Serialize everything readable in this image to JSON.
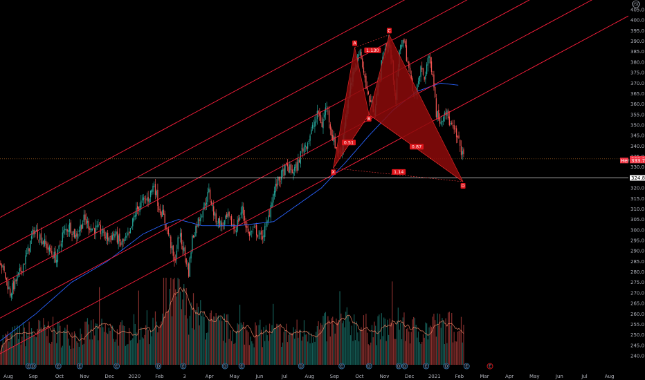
{
  "chart_data": {
    "type": "candlestick",
    "y_axis": {
      "range": [
        236,
        412
      ],
      "ticks": [
        240,
        245,
        250,
        255,
        260,
        265,
        270,
        275,
        280,
        285,
        290,
        295,
        300,
        305,
        310,
        315,
        320,
        325,
        330,
        335,
        340,
        345,
        350,
        355,
        360,
        365,
        370,
        375,
        380,
        385,
        390,
        395,
        400,
        405
      ]
    },
    "x_axis": {
      "ticks": [
        "Aug",
        "Sep",
        "Oct",
        "Nov",
        "Dec",
        "2020",
        "Feb",
        "3",
        "Apr",
        "May",
        "Jun",
        "Jul",
        "Aug",
        "Sep",
        "Oct",
        "Nov",
        "Dec",
        "2021",
        "Feb",
        "Mar",
        "Apr",
        "May",
        "Jun",
        "Jul",
        "Aug"
      ],
      "tick_index": [
        0,
        21,
        43,
        64,
        85,
        106,
        127,
        148,
        169,
        190,
        211,
        232,
        253,
        274,
        295,
        316,
        337,
        358,
        379,
        400,
        421,
        442,
        463,
        484,
        505
      ]
    },
    "price_labels": [
      {
        "name": "last",
        "value": "333.90",
        "price": 333.9,
        "color": "#f23645"
      },
      {
        "name": "ma",
        "value": "333.78",
        "price": 333.1,
        "color": "#f23645",
        "prefix": "Her"
      },
      {
        "name": "support",
        "value": "324.81",
        "price": 324.81,
        "color": "#ffffff"
      }
    ],
    "close_anchors": [
      [
        0,
        285
      ],
      [
        8,
        270
      ],
      [
        15,
        278
      ],
      [
        22,
        288
      ],
      [
        28,
        300
      ],
      [
        33,
        297
      ],
      [
        40,
        291
      ],
      [
        47,
        286
      ],
      [
        52,
        298
      ],
      [
        58,
        302
      ],
      [
        63,
        297
      ],
      [
        70,
        305
      ],
      [
        76,
        301
      ],
      [
        83,
        300
      ],
      [
        90,
        296
      ],
      [
        96,
        298
      ],
      [
        101,
        293
      ],
      [
        108,
        297
      ],
      [
        113,
        308
      ],
      [
        118,
        313
      ],
      [
        124,
        315
      ],
      [
        129,
        322
      ],
      [
        133,
        311
      ],
      [
        137,
        306
      ],
      [
        142,
        296
      ],
      [
        146,
        284
      ],
      [
        150,
        298
      ],
      [
        154,
        290
      ],
      [
        158,
        280
      ],
      [
        161,
        296
      ],
      [
        165,
        303
      ],
      [
        170,
        310
      ],
      [
        175,
        318
      ],
      [
        180,
        306
      ],
      [
        186,
        302
      ],
      [
        191,
        306
      ],
      [
        197,
        300
      ],
      [
        203,
        310
      ],
      [
        208,
        298
      ],
      [
        214,
        300
      ],
      [
        219,
        296
      ],
      [
        224,
        303
      ],
      [
        228,
        315
      ],
      [
        232,
        322
      ],
      [
        236,
        326
      ],
      [
        240,
        330
      ],
      [
        245,
        328
      ],
      [
        249,
        330
      ],
      [
        253,
        338
      ],
      [
        258,
        342
      ],
      [
        263,
        350
      ],
      [
        267,
        356
      ],
      [
        270,
        350
      ],
      [
        274,
        360
      ],
      [
        278,
        346
      ],
      [
        282,
        339
      ],
      [
        286,
        336
      ],
      [
        290,
        355
      ],
      [
        294,
        368
      ],
      [
        298,
        378
      ],
      [
        301,
        385
      ],
      [
        304,
        380
      ],
      [
        307,
        368
      ],
      [
        310,
        362
      ],
      [
        314,
        357
      ],
      [
        318,
        372
      ],
      [
        322,
        385
      ],
      [
        326,
        390
      ],
      [
        329,
        378
      ],
      [
        332,
        363
      ],
      [
        335,
        384
      ],
      [
        338,
        392
      ],
      [
        342,
        380
      ],
      [
        345,
        370
      ],
      [
        349,
        364
      ],
      [
        353,
        377
      ],
      [
        356,
        372
      ],
      [
        359,
        382
      ],
      [
        363,
        376
      ],
      [
        366,
        356
      ],
      [
        370,
        352
      ],
      [
        373,
        358
      ],
      [
        378,
        350
      ],
      [
        382,
        346
      ],
      [
        386,
        340
      ],
      [
        389,
        334
      ]
    ],
    "volume_anchors": [
      [
        0,
        0.35
      ],
      [
        20,
        0.45
      ],
      [
        40,
        0.5
      ],
      [
        60,
        0.42
      ],
      [
        80,
        0.5
      ],
      [
        100,
        0.45
      ],
      [
        120,
        0.55
      ],
      [
        135,
        0.55
      ],
      [
        140,
        0.9
      ],
      [
        146,
        1.0
      ],
      [
        155,
        0.85
      ],
      [
        165,
        0.7
      ],
      [
        180,
        0.55
      ],
      [
        200,
        0.5
      ],
      [
        220,
        0.45
      ],
      [
        240,
        0.45
      ],
      [
        260,
        0.5
      ],
      [
        280,
        0.55
      ],
      [
        295,
        0.6
      ],
      [
        310,
        0.5
      ],
      [
        330,
        0.55
      ],
      [
        350,
        0.5
      ],
      [
        370,
        0.55
      ],
      [
        389,
        0.55
      ]
    ],
    "ma_anchors": [
      [
        0,
        247
      ],
      [
        30,
        260
      ],
      [
        60,
        275
      ],
      [
        90,
        285
      ],
      [
        120,
        298
      ],
      [
        135,
        302
      ],
      [
        150,
        305
      ],
      [
        170,
        302
      ],
      [
        200,
        302
      ],
      [
        230,
        304
      ],
      [
        250,
        312
      ],
      [
        270,
        320
      ],
      [
        290,
        332
      ],
      [
        310,
        345
      ],
      [
        330,
        357
      ],
      [
        350,
        366
      ],
      [
        370,
        370
      ],
      [
        385,
        369
      ]
    ],
    "channel_lines": {
      "slope_per_bar": 0.305,
      "intercepts_at_bar0": [
        306,
        290,
        274,
        258,
        241
      ]
    },
    "support_line": {
      "price": 324.81,
      "from_bar": 116,
      "to_bar": 389
    },
    "harmonic_pattern": {
      "points": [
        {
          "label": "X",
          "bar": 280,
          "price": 329.5
        },
        {
          "label": "A",
          "bar": 298,
          "price": 387
        },
        {
          "label": "B",
          "bar": 310,
          "price": 355
        },
        {
          "label": "C",
          "bar": 327,
          "price": 393
        },
        {
          "label": "D",
          "bar": 389,
          "price": 323
        }
      ],
      "marker_text": [
        "X",
        "A",
        "B",
        "C",
        "D"
      ],
      "ratios": [
        {
          "text": "0.51",
          "bar": 293,
          "price": 341.5
        },
        {
          "text": "1.130",
          "bar": 313,
          "price": 385.5
        },
        {
          "text": "0.87",
          "bar": 350,
          "price": 339.5
        },
        {
          "text": "1.14",
          "bar": 335,
          "price": 327.5
        }
      ]
    },
    "event_markers": {
      "E": [
        24,
        49,
        67,
        98,
        154,
        203,
        287,
        358,
        392
      ],
      "D": [
        28,
        133,
        189,
        253,
        310,
        335,
        340,
        375
      ]
    }
  },
  "colors": {
    "background": "#000000",
    "up": "#26a69a",
    "down": "#ef5350",
    "channel": "#ff1f3d",
    "ma": "#2962ff",
    "volume_ma": "#ff8c6a",
    "pattern_fill": "#8e0b0b",
    "axis_text": "#b2b5be"
  },
  "icons": {
    "currency": "usd-icon"
  }
}
